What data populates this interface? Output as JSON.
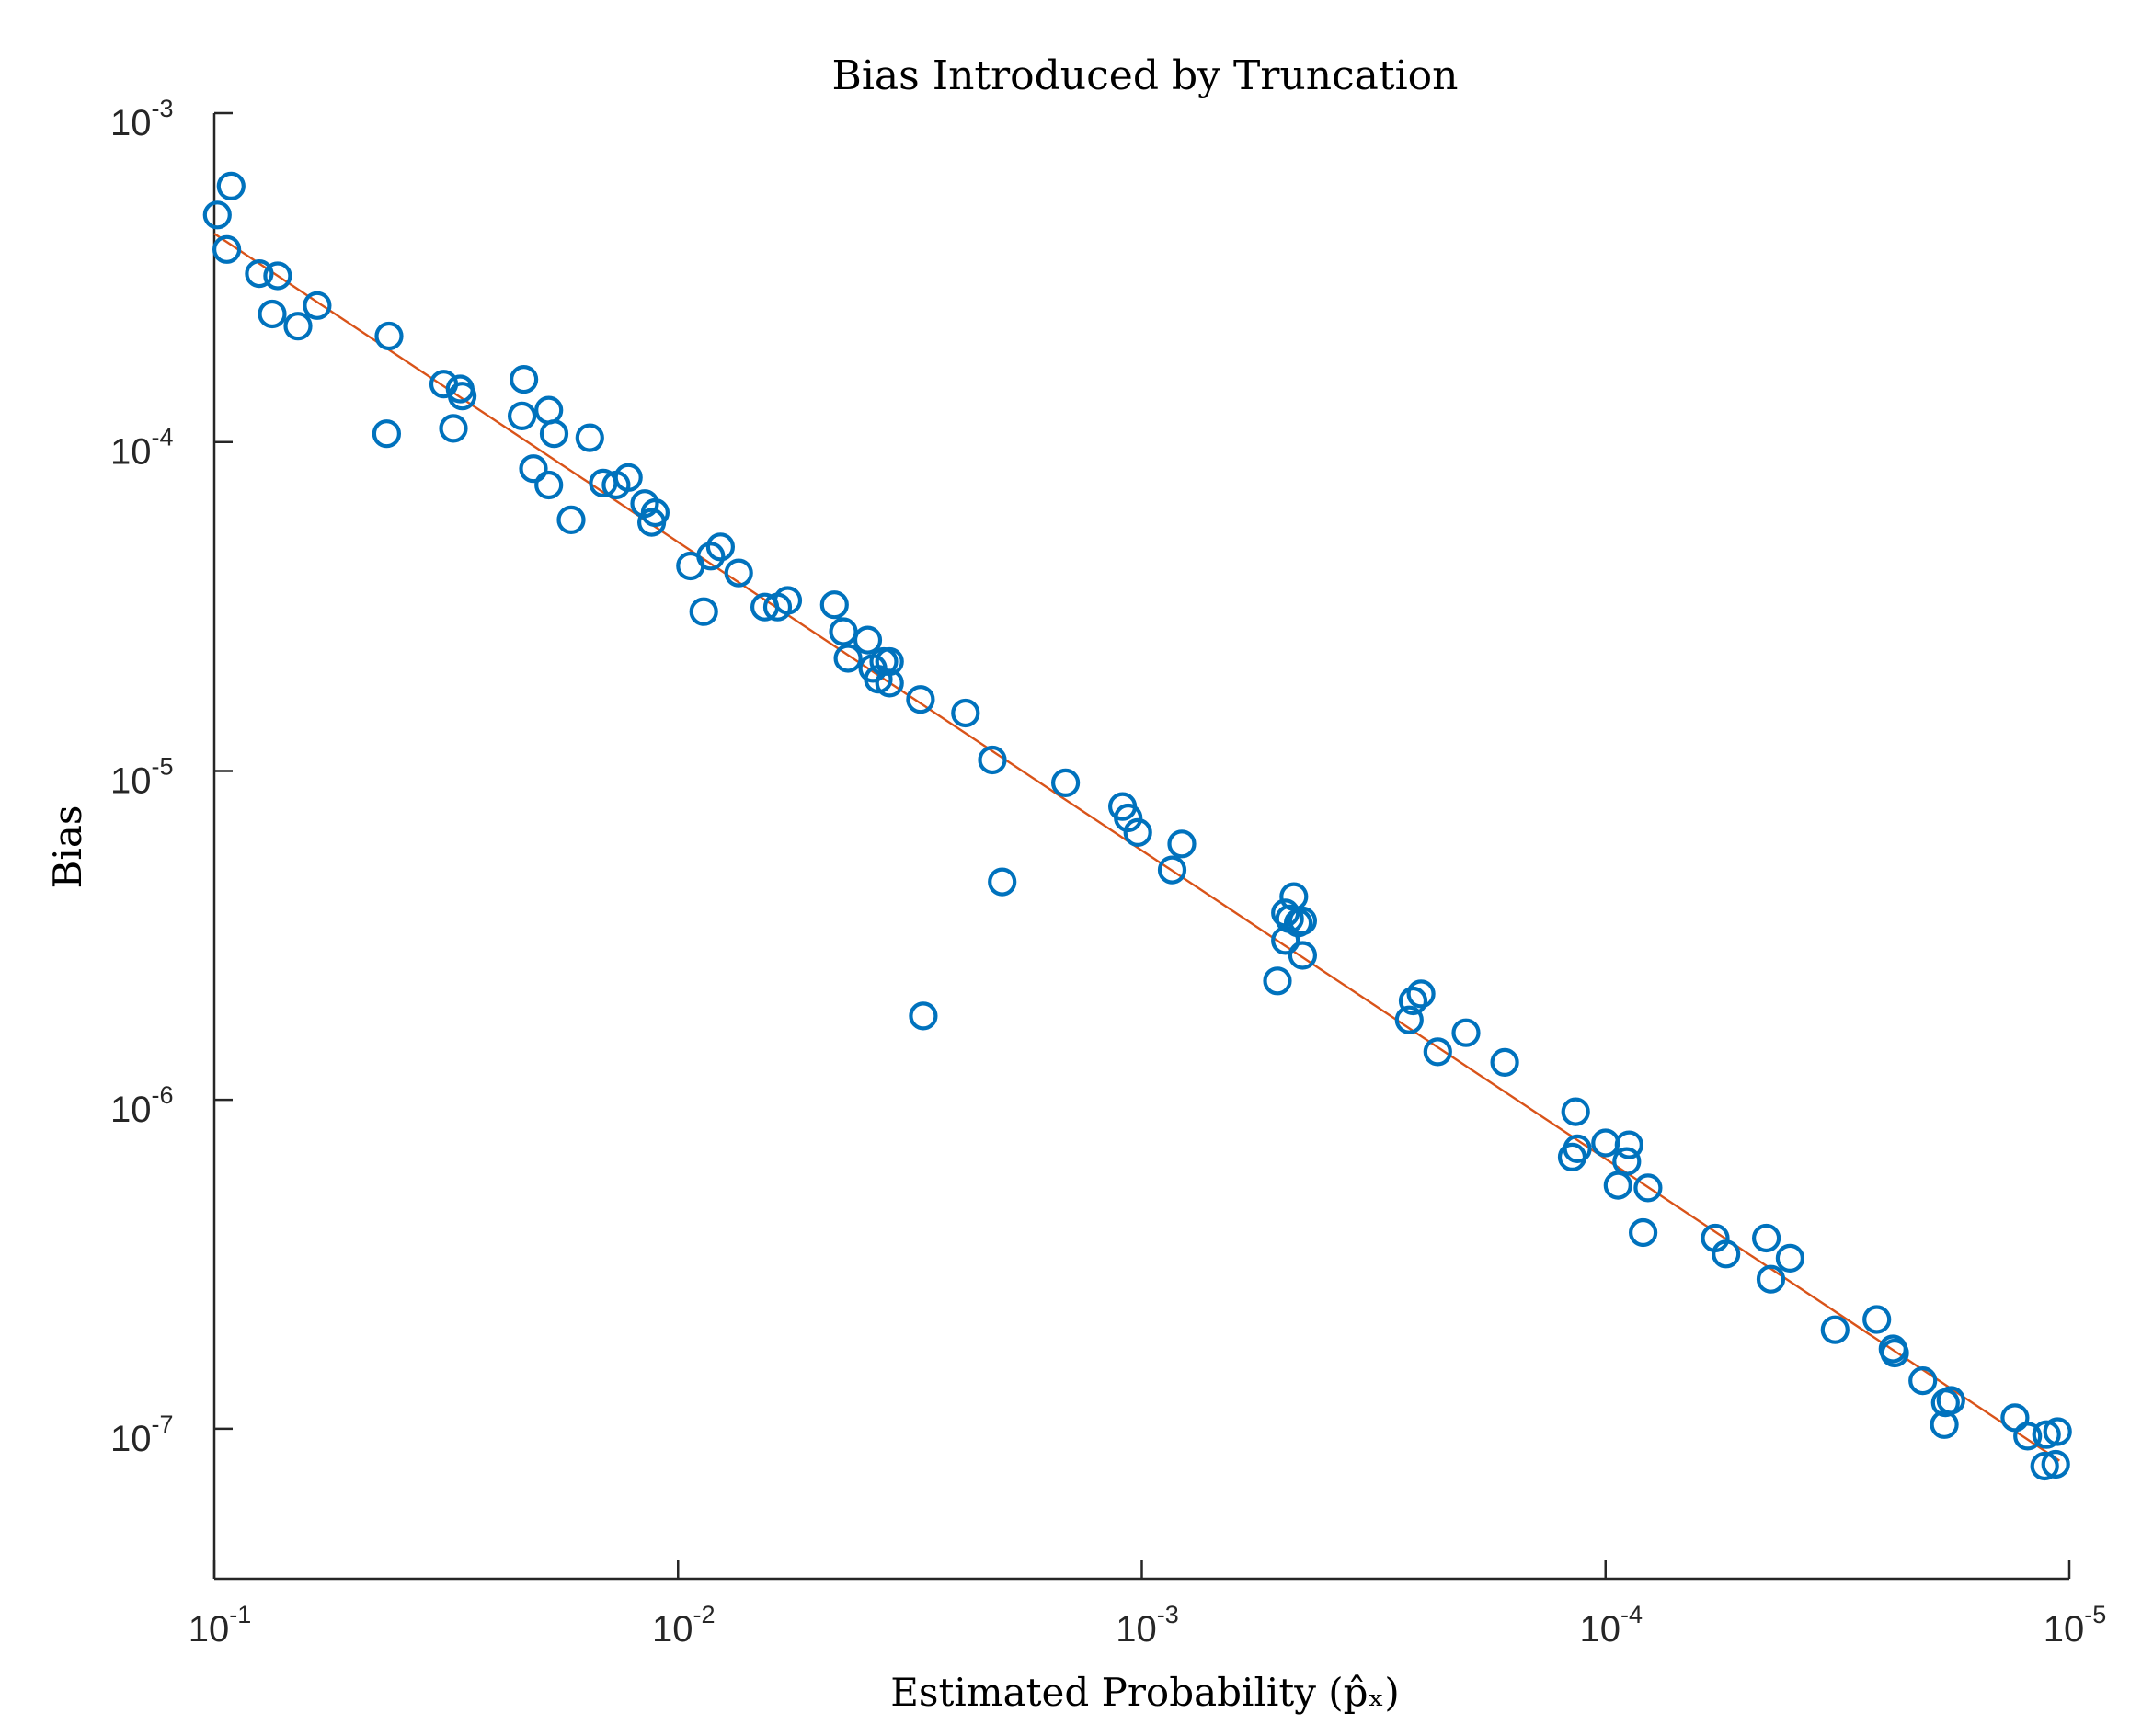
{
  "chart_data": {
    "type": "scatter",
    "title": "Bias Introduced by Truncation",
    "xlabel": "Estimated Probability (p̂ₓ)",
    "ylabel": "Bias",
    "x_scale": "log",
    "y_scale": "log",
    "x_reversed": true,
    "xlim": [
      0.1,
      1e-05
    ],
    "ylim": [
      3.5e-08,
      0.001
    ],
    "x_ticks": [
      {
        "base": "10",
        "exp": "-1",
        "value": 0.1
      },
      {
        "base": "10",
        "exp": "-2",
        "value": 0.01
      },
      {
        "base": "10",
        "exp": "-3",
        "value": 0.001
      },
      {
        "base": "10",
        "exp": "-4",
        "value": 0.0001
      },
      {
        "base": "10",
        "exp": "-5",
        "value": 1e-05
      }
    ],
    "y_ticks": [
      {
        "base": "10",
        "exp": "-3",
        "value": 0.001
      },
      {
        "base": "10",
        "exp": "-4",
        "value": 0.0001
      },
      {
        "base": "10",
        "exp": "-5",
        "value": 1e-05
      },
      {
        "base": "10",
        "exp": "-6",
        "value": 1e-06
      },
      {
        "base": "10",
        "exp": "-7",
        "value": 1e-07
      }
    ],
    "grid": false,
    "legend": "none",
    "colors": {
      "points": "#0072BD",
      "fit": "#D95319"
    },
    "series": [
      {
        "kind": "scatter",
        "marker": "circle",
        "points": [
          [
            0.0985,
            0.00049
          ],
          [
            0.092,
            0.0006
          ],
          [
            0.094,
            0.000385
          ],
          [
            0.08,
            0.000325
          ],
          [
            0.075,
            0.000245
          ],
          [
            0.073,
            0.00032
          ],
          [
            0.066,
            0.000225
          ],
          [
            0.06,
            0.00026
          ],
          [
            0.042,
            0.00021
          ],
          [
            0.0425,
            0.000106
          ],
          [
            0.032,
            0.00015
          ],
          [
            0.0305,
            0.00011
          ],
          [
            0.0295,
            0.000145
          ],
          [
            0.0292,
            0.000138
          ],
          [
            0.0215,
            0.000155
          ],
          [
            0.0217,
            0.00012
          ],
          [
            0.019,
            0.000125
          ],
          [
            0.0185,
            0.000106
          ],
          [
            0.0205,
            8.3e-05
          ],
          [
            0.019,
            7.4e-05
          ],
          [
            0.017,
            5.8e-05
          ],
          [
            0.0155,
            0.000103
          ],
          [
            0.0145,
            7.5e-05
          ],
          [
            0.0136,
            7.4e-05
          ],
          [
            0.0128,
            7.8e-05
          ],
          [
            0.0118,
            6.5e-05
          ],
          [
            0.0112,
            6.1e-05
          ],
          [
            0.0114,
            5.7e-05
          ],
          [
            0.0094,
            4.2e-05
          ],
          [
            0.0085,
            4.5e-05
          ],
          [
            0.0081,
            4.8e-05
          ],
          [
            0.0088,
            3.05e-05
          ],
          [
            0.0074,
            4e-05
          ],
          [
            0.0065,
            3.15e-05
          ],
          [
            0.0061,
            3.15e-05
          ],
          [
            0.0058,
            3.3e-05
          ],
          [
            0.0046,
            3.2e-05
          ],
          [
            0.0044,
            2.65e-05
          ],
          [
            0.0043,
            2.2e-05
          ],
          [
            0.0039,
            2.5e-05
          ],
          [
            0.0036,
            2.15e-05
          ],
          [
            0.0035,
            2.15e-05
          ],
          [
            0.0038,
            2.05e-05
          ],
          [
            0.0037,
            1.9e-05
          ],
          [
            0.0035,
            1.85e-05
          ],
          [
            0.003,
            1.65e-05
          ],
          [
            0.0024,
            1.5e-05
          ],
          [
            0.0021,
            1.08e-05
          ],
          [
            0.002,
            4.6e-06
          ],
          [
            0.00296,
            1.8e-06
          ],
          [
            0.00146,
            9.2e-06
          ],
          [
            0.0011,
            7.8e-06
          ],
          [
            0.00107,
            7.2e-06
          ],
          [
            0.00102,
            6.5e-06
          ],
          [
            0.00082,
            6e-06
          ],
          [
            0.00086,
            5e-06
          ],
          [
            0.00049,
            3.7e-06
          ],
          [
            0.00048,
            3.55e-06
          ],
          [
            0.00047,
            4.15e-06
          ],
          [
            0.00046,
            3.45e-06
          ],
          [
            0.00045,
            3.5e-06
          ],
          [
            0.00049,
            3.05e-06
          ],
          [
            0.00045,
            2.75e-06
          ],
          [
            0.00051,
            2.3e-06
          ],
          [
            0.00026,
            2e-06
          ],
          [
            0.00025,
            2.1e-06
          ],
          [
            0.000265,
            1.75e-06
          ],
          [
            0.00023,
            1.4e-06
          ],
          [
            0.0002,
            1.6e-06
          ],
          [
            0.000165,
            1.3e-06
          ],
          [
            0.000116,
            9.2e-07
          ],
          [
            0.000118,
            6.7e-07
          ],
          [
            0.000115,
            7.1e-07
          ],
          [
            0.0001,
            7.4e-07
          ],
          [
            8.9e-05,
            7.3e-07
          ],
          [
            9e-05,
            6.5e-07
          ],
          [
            9.4e-05,
            5.5e-07
          ],
          [
            8.1e-05,
            5.4e-07
          ],
          [
            8.3e-05,
            3.95e-07
          ],
          [
            5.8e-05,
            3.8e-07
          ],
          [
            5.5e-05,
            3.4e-07
          ],
          [
            4.5e-05,
            3.8e-07
          ],
          [
            4.4e-05,
            2.85e-07
          ],
          [
            4e-05,
            3.3e-07
          ],
          [
            3.2e-05,
            2e-07
          ],
          [
            2.6e-05,
            2.15e-07
          ],
          [
            2.4e-05,
            1.75e-07
          ],
          [
            2.38e-05,
            1.7e-07
          ],
          [
            2.07e-05,
            1.4e-07
          ],
          [
            1.85e-05,
            1.2e-07
          ],
          [
            1.8e-05,
            1.22e-07
          ],
          [
            1.86e-05,
            1.03e-07
          ],
          [
            1.31e-05,
            1.08e-07
          ],
          [
            1.23e-05,
            9.5e-08
          ],
          [
            1.12e-05,
            9.6e-08
          ],
          [
            1.06e-05,
            9.8e-08
          ],
          [
            1.13e-05,
            7.7e-08
          ],
          [
            1.07e-05,
            7.8e-08
          ]
        ]
      },
      {
        "kind": "line",
        "points": [
          [
            0.1,
            0.00043
          ],
          [
            1.05e-05,
            8e-08
          ]
        ]
      }
    ]
  }
}
